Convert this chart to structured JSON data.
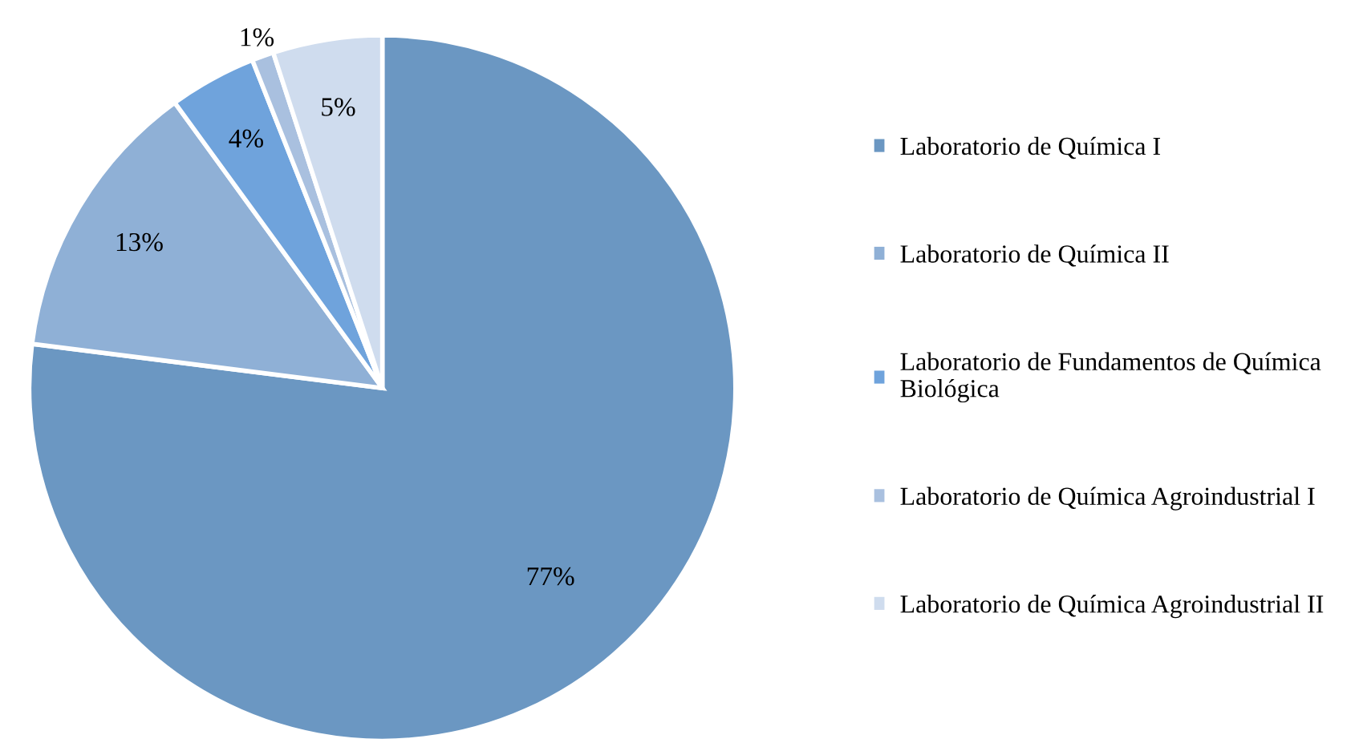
{
  "chart_data": {
    "type": "pie",
    "categories": [
      "Laboratorio de Química I",
      "Laboratorio de Química II",
      "Laboratorio de Fundamentos de Química Biológica",
      "Laboratorio de Química Agroindustrial I",
      "Laboratorio de Química Agroindustrial II"
    ],
    "values": [
      77,
      13,
      4,
      1,
      5
    ],
    "colors": [
      "#6b97c2",
      "#8fb0d6",
      "#6fa3dc",
      "#a9c0df",
      "#cfdcee"
    ],
    "value_labels": [
      "77%",
      "13%",
      "4%",
      "1%",
      "5%"
    ],
    "legend": "right"
  }
}
